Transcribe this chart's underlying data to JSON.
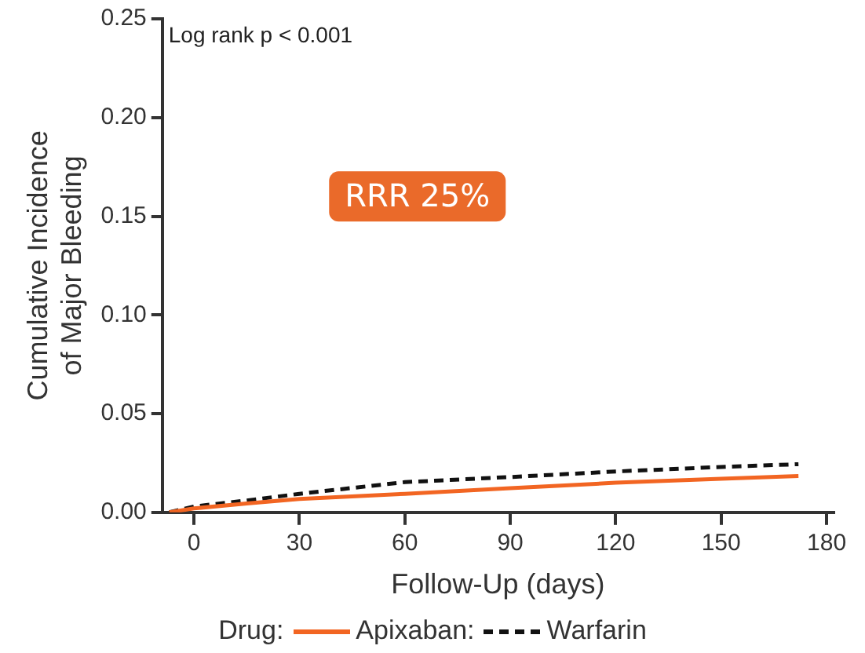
{
  "chart_data": {
    "type": "line",
    "xlabel": "Follow-Up (days)",
    "ylabel": "Cumulative Incidence of Major Bleeding",
    "legend_title": "Drug:",
    "annotations": [
      "Log rank p < 0.001",
      "RRR 25%"
    ],
    "series": [
      {
        "name": "Apixaban:",
        "color": "#f26522",
        "line_style": "solid",
        "x": [
          -7,
          0,
          15,
          30,
          60,
          90,
          120,
          150,
          172
        ],
        "values": [
          0,
          0.002,
          0.0045,
          0.0068,
          0.0094,
          0.0122,
          0.015,
          0.017,
          0.0184
        ]
      },
      {
        "name": "Warfarin",
        "color": "#111111",
        "line_style": "dashed",
        "x": [
          -7,
          0,
          15,
          30,
          60,
          90,
          120,
          150,
          172
        ],
        "values": [
          0,
          0.003,
          0.006,
          0.0094,
          0.0153,
          0.0179,
          0.0207,
          0.023,
          0.0244
        ]
      }
    ],
    "xlim": [
      -9,
      182
    ],
    "xticks": [
      0,
      30,
      60,
      90,
      120,
      150,
      180
    ],
    "ylim": [
      0,
      0.25
    ],
    "yticks": [
      {
        "value": 0,
        "label": "0.00"
      },
      {
        "value": 0.05,
        "label": "0.05"
      },
      {
        "value": 0.1,
        "label": "0.10"
      },
      {
        "value": 0.15,
        "label": "0.15"
      },
      {
        "value": 0.2,
        "label": "0.20"
      },
      {
        "value": 0.25,
        "label": "0.25"
      }
    ],
    "grid": false,
    "legend": "bottom",
    "marker": "none"
  }
}
